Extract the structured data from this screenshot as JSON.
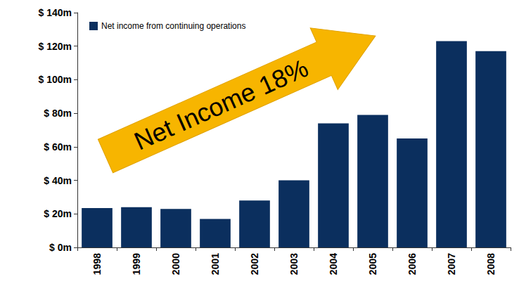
{
  "chart_data": {
    "type": "bar",
    "categories": [
      "1998",
      "1999",
      "2000",
      "2001",
      "2002",
      "2003",
      "2004",
      "2005",
      "2006",
      "2007",
      "2008"
    ],
    "series": [
      {
        "name": "Net income from continuing operations",
        "color": "#0b2f5e",
        "values": [
          23.5,
          24,
          23,
          17,
          28,
          40,
          74,
          79,
          65,
          123,
          117
        ]
      }
    ],
    "ylim": [
      0,
      140
    ],
    "yticks": [
      {
        "value": 0,
        "label": "$ 0m"
      },
      {
        "value": 20,
        "label": "$ 20m"
      },
      {
        "value": 40,
        "label": "$ 40m"
      },
      {
        "value": 60,
        "label": "$ 60m"
      },
      {
        "value": 80,
        "label": "$ 80m"
      },
      {
        "value": 100,
        "label": "$ 100m"
      },
      {
        "value": 120,
        "label": "$ 120m"
      },
      {
        "value": 140,
        "label": "$ 140m"
      }
    ],
    "annotation": "Net Income 18%",
    "legend": "top-left",
    "grid": false
  }
}
